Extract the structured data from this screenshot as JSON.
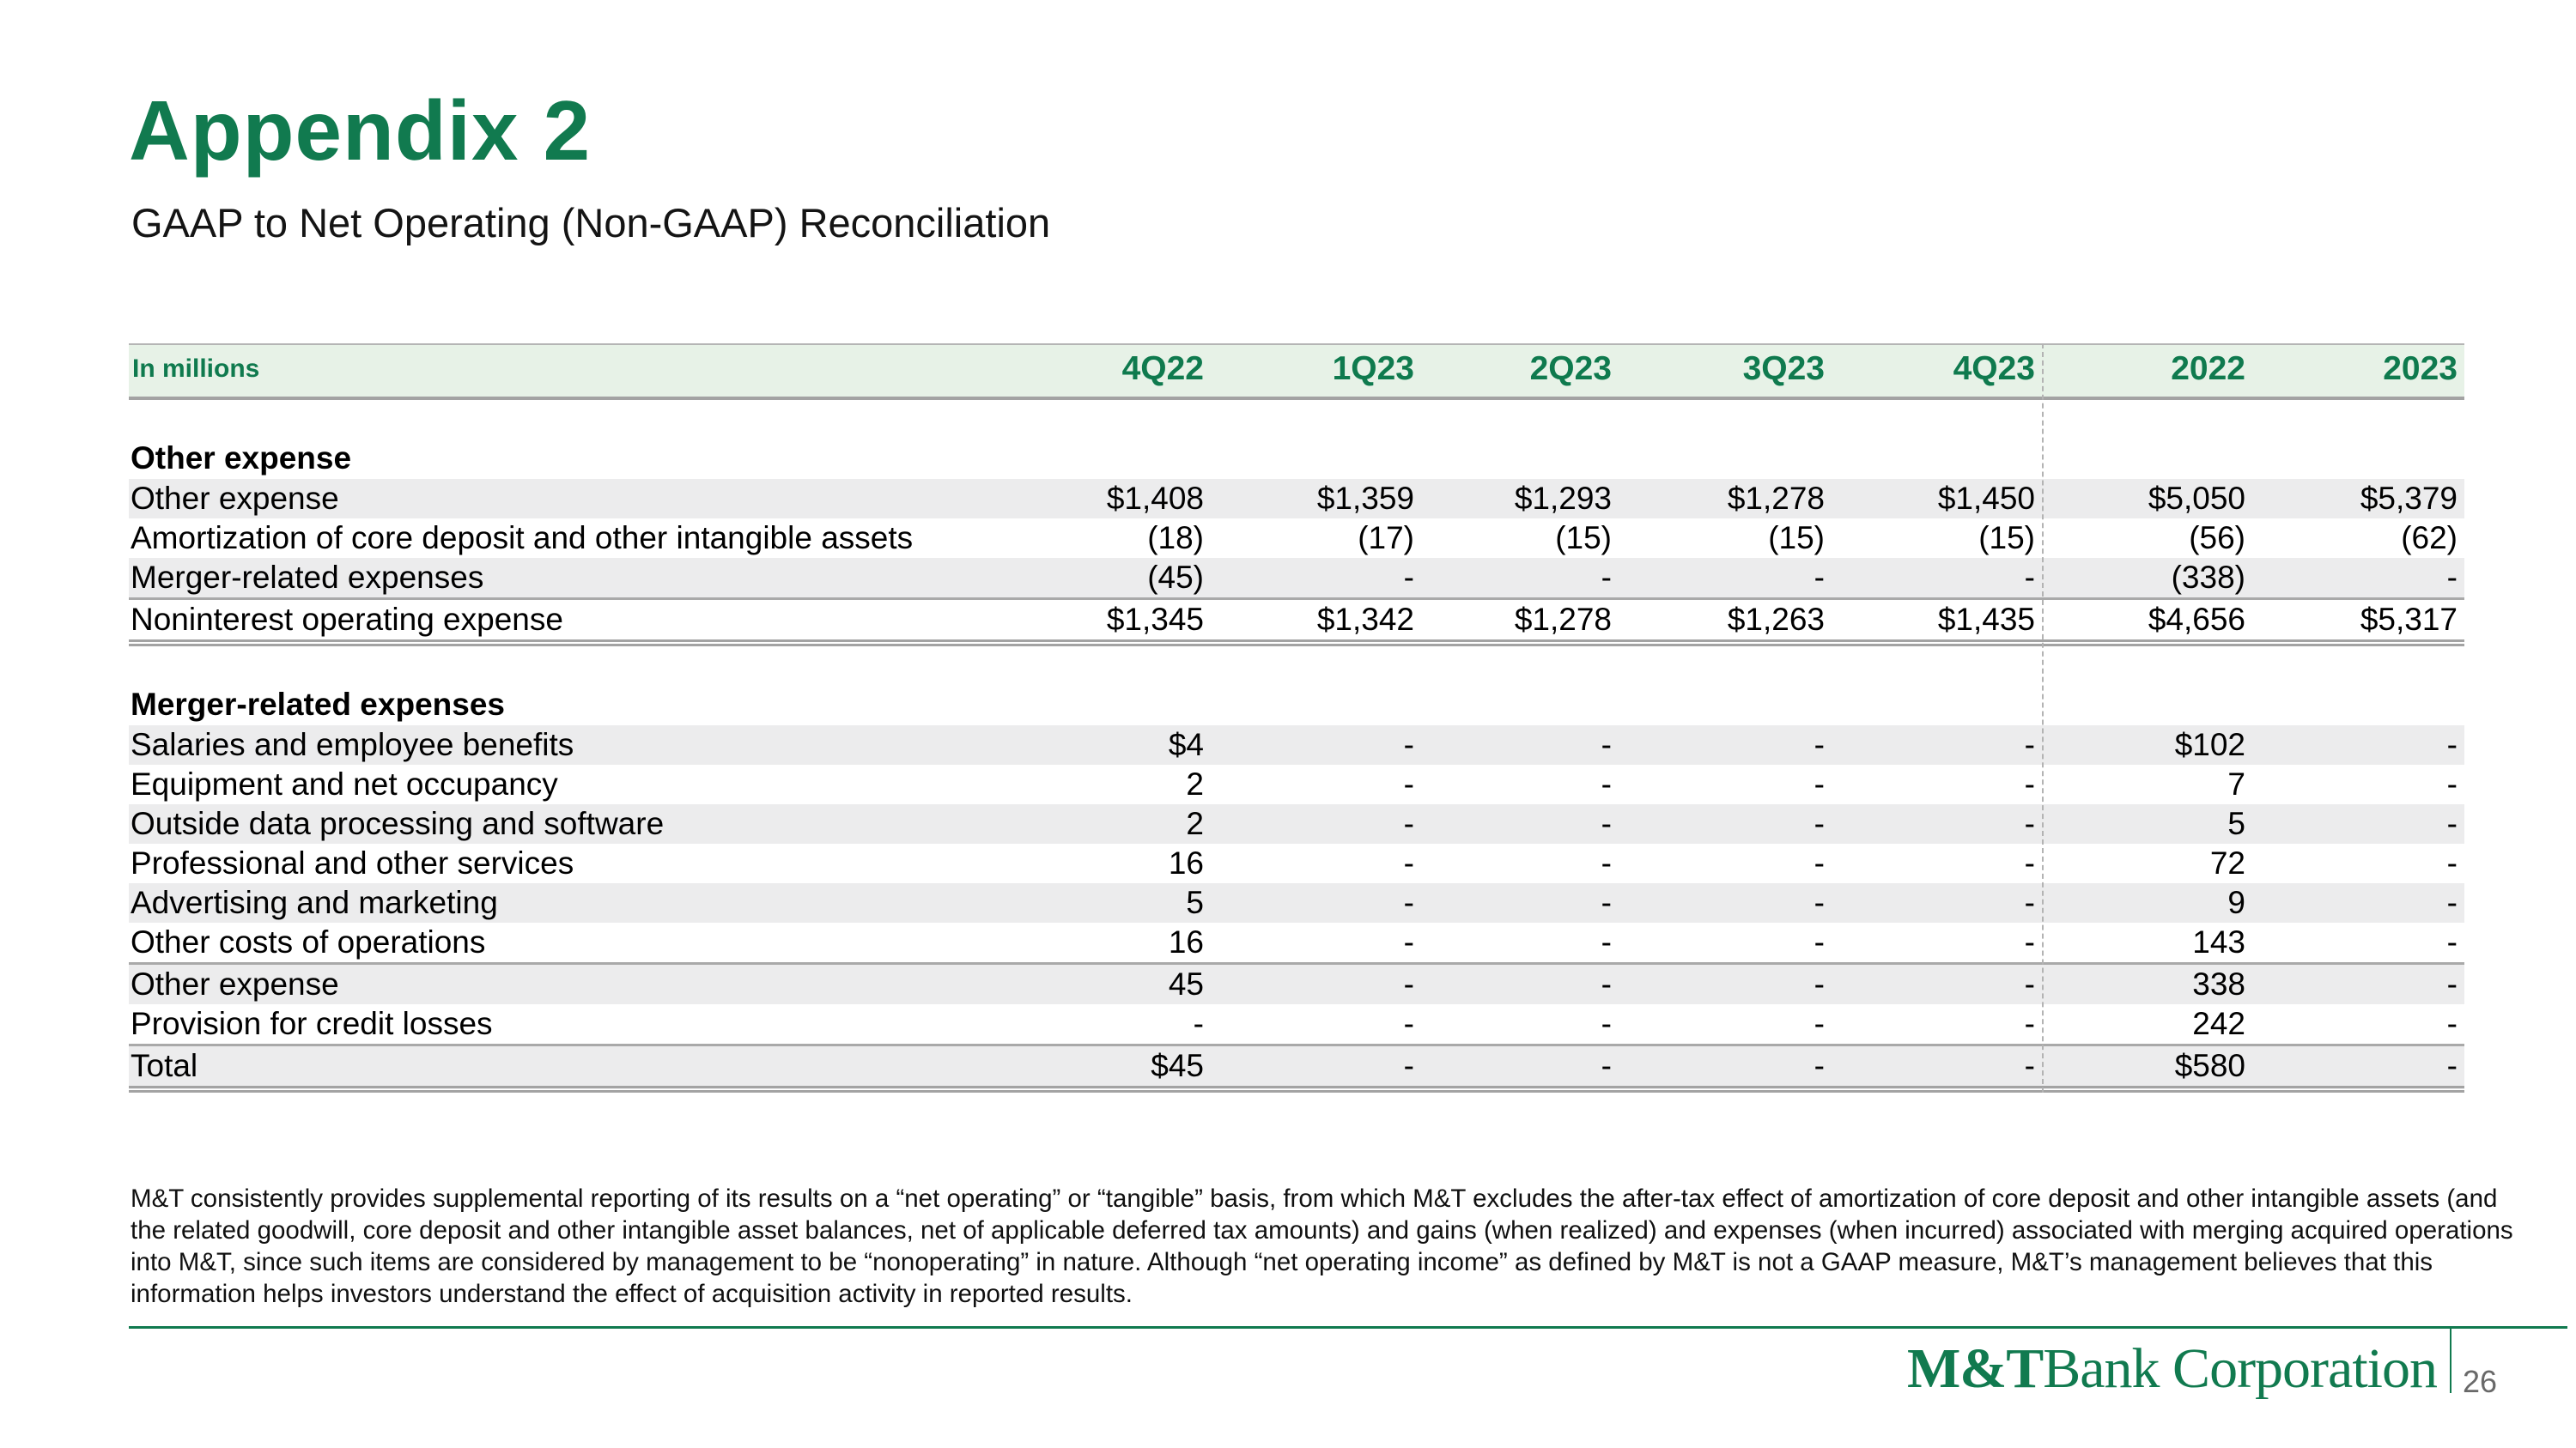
{
  "slide": {
    "title": "Appendix 2",
    "subtitle": "GAAP to Net Operating (Non-GAAP) Reconciliation",
    "footnote": "M&T consistently provides supplemental reporting of its results on a “net operating” or “tangible” basis, from which M&T excludes the after-tax effect of amortization of core deposit and other intangible assets (and the related goodwill, core deposit and other intangible asset balances, net of applicable deferred tax amounts) and gains (when realized) and expenses (when incurred) associated with merging acquired operations into M&T, since such items are considered by management to be “nonoperating” in nature. Although “net operating income” as defined by M&T is not a GAAP measure, M&T’s management believes that this information helps investors understand the effect of acquisition activity in reported results.",
    "logo": {
      "mt": "M&T",
      "rest": "Bank Corporation"
    },
    "page_number": "26"
  },
  "colors": {
    "brand_green": "#117a4f",
    "header_band_green": "#e7f2e7",
    "zebra_gray": "#ececed",
    "rule_gray": "#a3a3a3",
    "page_number_gray": "#696969"
  },
  "table": {
    "unit_label": "In millions",
    "columns": [
      "4Q22",
      "1Q23",
      "2Q23",
      "3Q23",
      "4Q23",
      "2022",
      "2023"
    ],
    "sections": [
      {
        "title": "Other expense",
        "rows": [
          {
            "label": "Other expense",
            "values": [
              "$1,408",
              "$1,359",
              "$1,293",
              "$1,278",
              "$1,450",
              "$5,050",
              "$5,379"
            ]
          },
          {
            "label": "Amortization of core deposit and other intangible assets",
            "values": [
              "(18)",
              "(17)",
              "(15)",
              "(15)",
              "(15)",
              "(56)",
              "(62)"
            ]
          },
          {
            "label": "Merger-related expenses",
            "values": [
              "(45)",
              "-",
              "-",
              "-",
              "-",
              "(338)",
              "-"
            ],
            "rule_after": "single"
          },
          {
            "label": "Noninterest operating expense",
            "values": [
              "$1,345",
              "$1,342",
              "$1,278",
              "$1,263",
              "$1,435",
              "$4,656",
              "$5,317"
            ],
            "rule_after": "double"
          }
        ]
      },
      {
        "title": "Merger-related expenses",
        "rows": [
          {
            "label": "Salaries and employee benefits",
            "values": [
              "$4",
              "-",
              "-",
              "-",
              "-",
              "$102",
              "-"
            ]
          },
          {
            "label": "Equipment and net occupancy",
            "values": [
              "2",
              "-",
              "-",
              "-",
              "-",
              "7",
              "-"
            ]
          },
          {
            "label": "Outside data processing and software",
            "values": [
              "2",
              "-",
              "-",
              "-",
              "-",
              "5",
              "-"
            ]
          },
          {
            "label": "Professional and other services",
            "values": [
              "16",
              "-",
              "-",
              "-",
              "-",
              "72",
              "-"
            ]
          },
          {
            "label": "Advertising and marketing",
            "values": [
              "5",
              "-",
              "-",
              "-",
              "-",
              "9",
              "-"
            ]
          },
          {
            "label": "Other costs of operations",
            "values": [
              "16",
              "-",
              "-",
              "-",
              "-",
              "143",
              "-"
            ],
            "rule_after": "single"
          },
          {
            "label": "Other expense",
            "values": [
              "45",
              "-",
              "-",
              "-",
              "-",
              "338",
              "-"
            ]
          },
          {
            "label": "Provision for credit losses",
            "values": [
              "-",
              "-",
              "-",
              "-",
              "-",
              "242",
              "-"
            ],
            "rule_after": "single"
          },
          {
            "label": "Total",
            "values": [
              "$45",
              "-",
              "-",
              "-",
              "-",
              "$580",
              "-"
            ],
            "rule_after": "double"
          }
        ]
      }
    ]
  }
}
